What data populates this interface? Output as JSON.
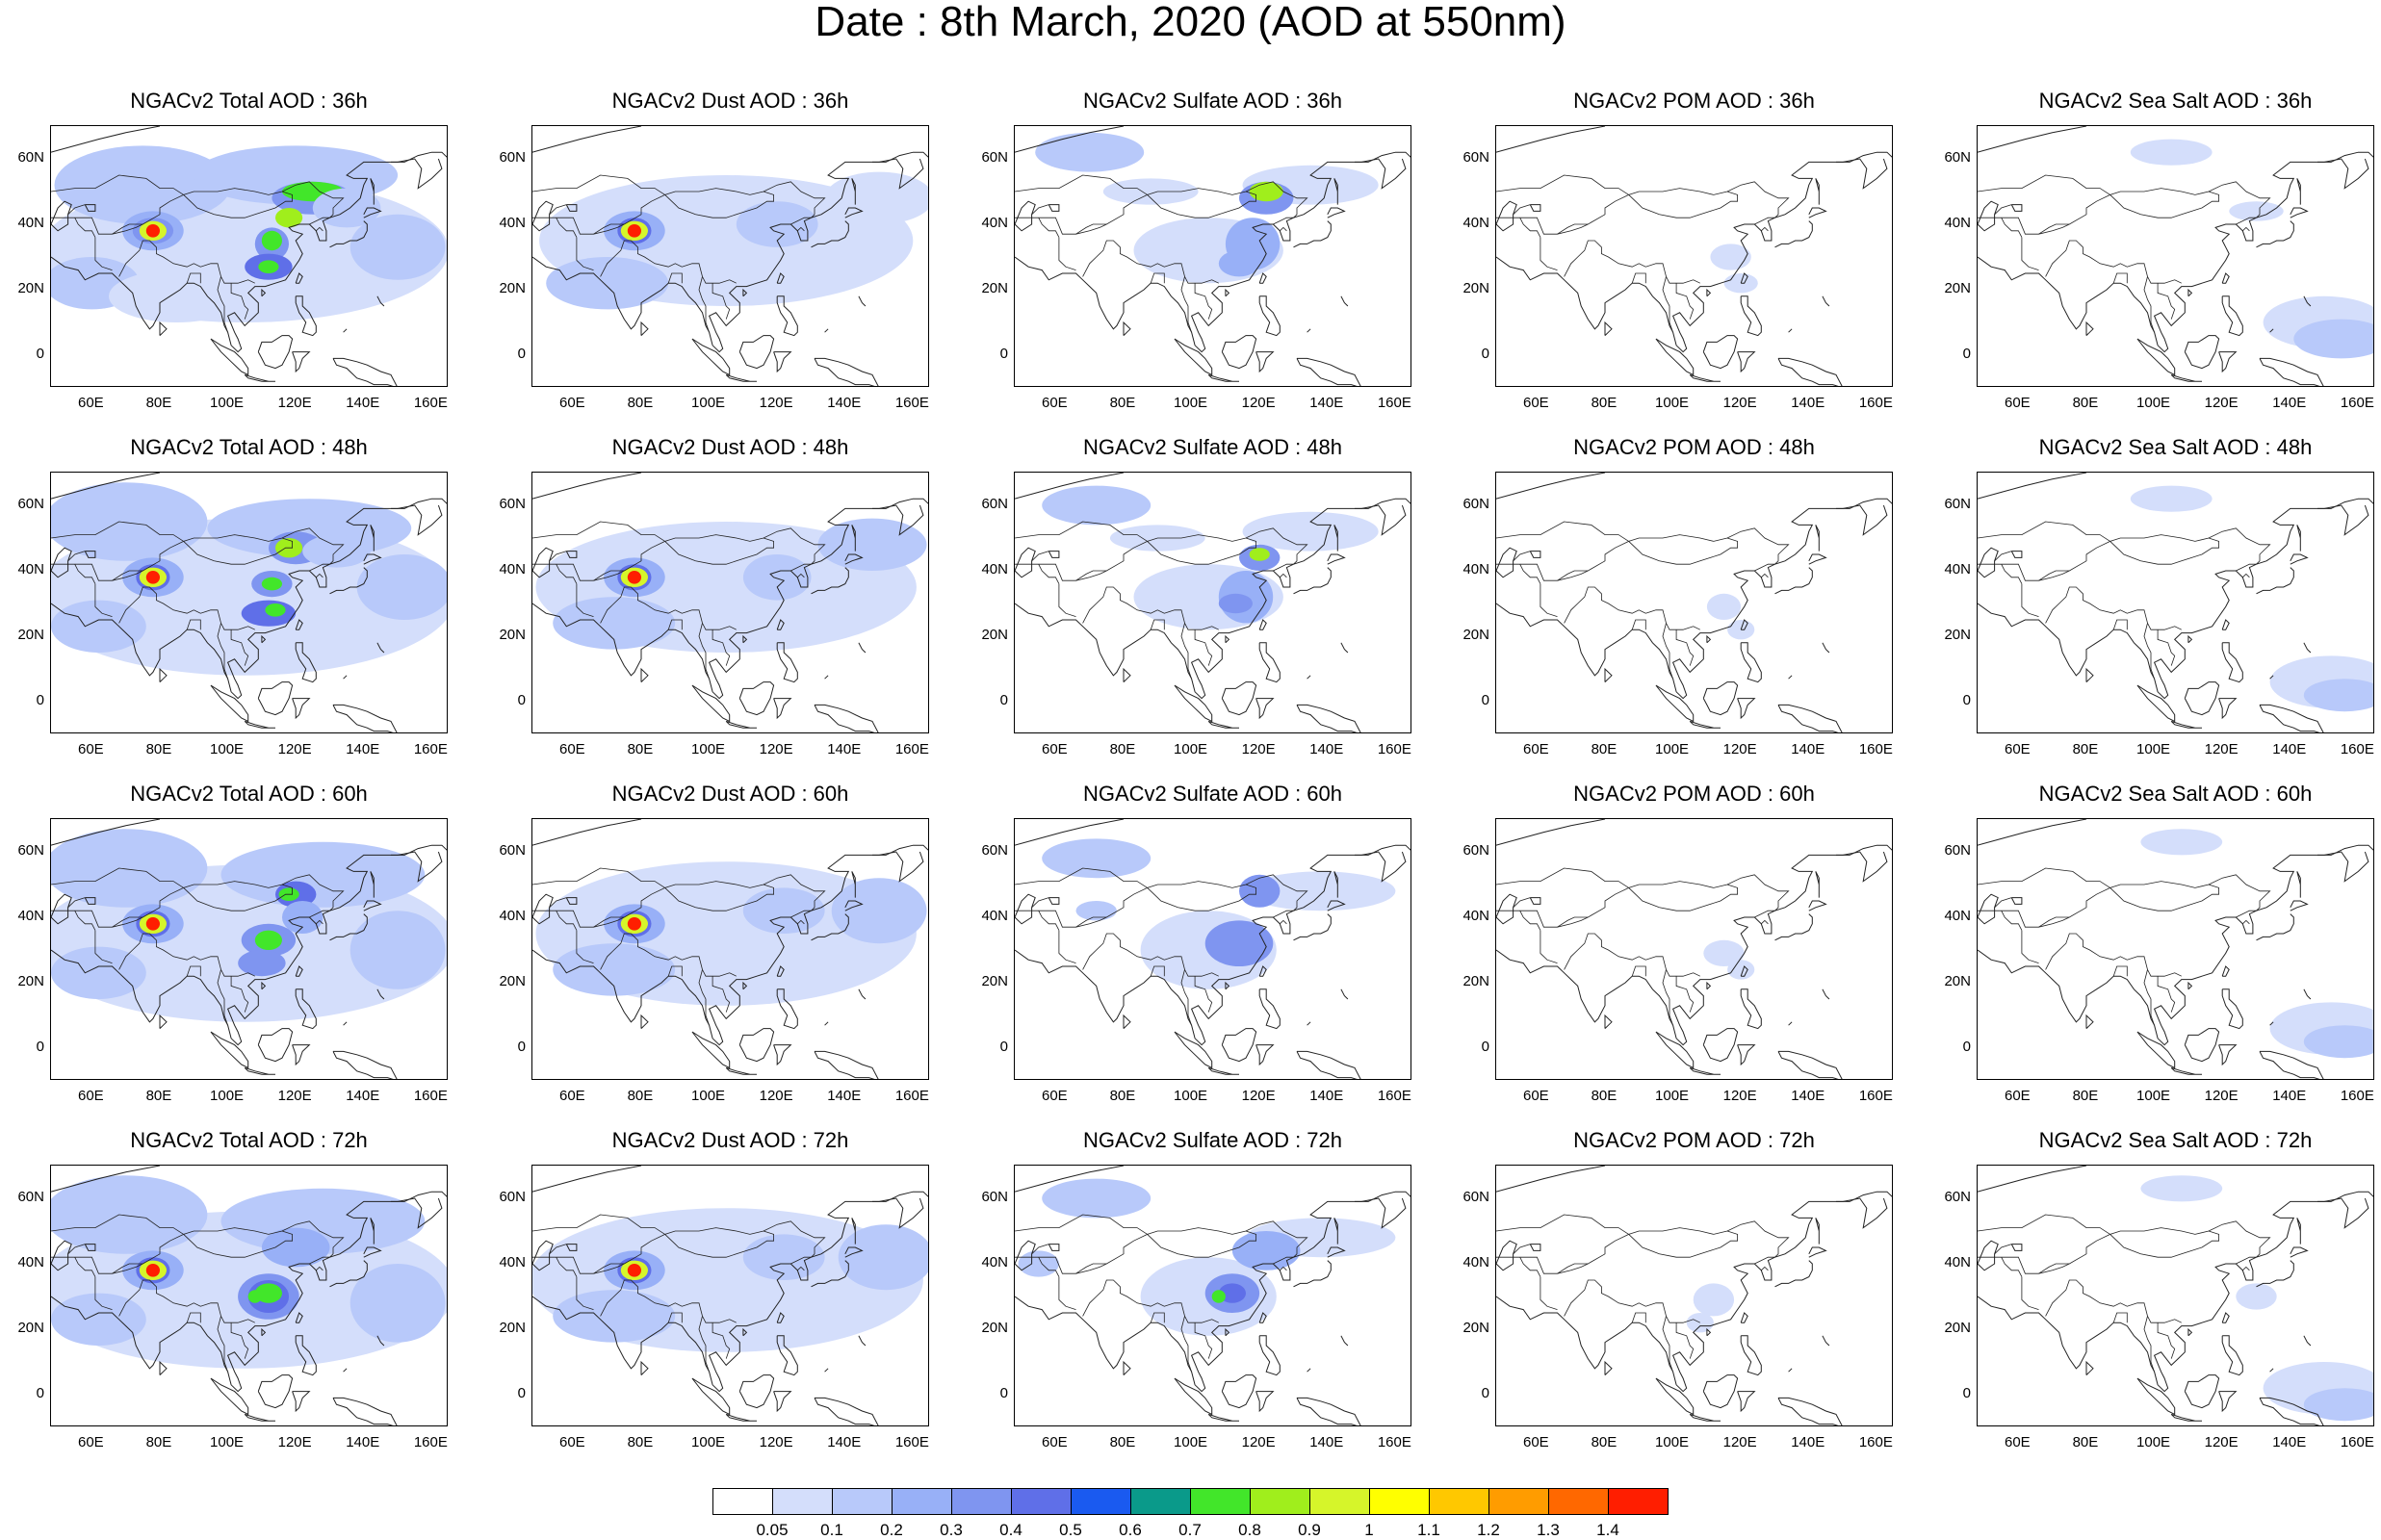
{
  "figure": {
    "title": "Date : 8th March, 2020 (AOD at 550nm)"
  },
  "map_axes": {
    "lat_ticks": [
      "60N",
      "40N",
      "20N",
      "0"
    ],
    "lon_ticks": [
      "60E",
      "80E",
      "100E",
      "120E",
      "140E",
      "160E"
    ],
    "lat_range": [
      -10,
      70
    ],
    "lon_range": [
      48,
      165
    ]
  },
  "panels": [
    {
      "row": 0,
      "col": 0,
      "title": "NGACv2 Total AOD : 36h",
      "species": "total",
      "lead_hours": 36
    },
    {
      "row": 0,
      "col": 1,
      "title": "NGACv2 Dust AOD : 36h",
      "species": "dust",
      "lead_hours": 36
    },
    {
      "row": 0,
      "col": 2,
      "title": "NGACv2 Sulfate AOD : 36h",
      "species": "sulfate",
      "lead_hours": 36
    },
    {
      "row": 0,
      "col": 3,
      "title": "NGACv2 POM AOD : 36h",
      "species": "pom",
      "lead_hours": 36
    },
    {
      "row": 0,
      "col": 4,
      "title": "NGACv2 Sea Salt AOD : 36h",
      "species": "seasalt",
      "lead_hours": 36
    },
    {
      "row": 1,
      "col": 0,
      "title": "NGACv2 Total AOD : 48h",
      "species": "total",
      "lead_hours": 48
    },
    {
      "row": 1,
      "col": 1,
      "title": "NGACv2 Dust AOD : 48h",
      "species": "dust",
      "lead_hours": 48
    },
    {
      "row": 1,
      "col": 2,
      "title": "NGACv2 Sulfate AOD : 48h",
      "species": "sulfate",
      "lead_hours": 48
    },
    {
      "row": 1,
      "col": 3,
      "title": "NGACv2 POM AOD : 48h",
      "species": "pom",
      "lead_hours": 48
    },
    {
      "row": 1,
      "col": 4,
      "title": "NGACv2 Sea Salt AOD : 48h",
      "species": "seasalt",
      "lead_hours": 48
    },
    {
      "row": 2,
      "col": 0,
      "title": "NGACv2 Total AOD : 60h",
      "species": "total",
      "lead_hours": 60
    },
    {
      "row": 2,
      "col": 1,
      "title": "NGACv2 Dust AOD : 60h",
      "species": "dust",
      "lead_hours": 60
    },
    {
      "row": 2,
      "col": 2,
      "title": "NGACv2 Sulfate AOD : 60h",
      "species": "sulfate",
      "lead_hours": 60
    },
    {
      "row": 2,
      "col": 3,
      "title": "NGACv2 POM AOD : 60h",
      "species": "pom",
      "lead_hours": 60
    },
    {
      "row": 2,
      "col": 4,
      "title": "NGACv2 Sea Salt AOD : 60h",
      "species": "seasalt",
      "lead_hours": 60
    },
    {
      "row": 3,
      "col": 0,
      "title": "NGACv2 Total AOD : 72h",
      "species": "total",
      "lead_hours": 72
    },
    {
      "row": 3,
      "col": 1,
      "title": "NGACv2 Dust AOD : 72h",
      "species": "dust",
      "lead_hours": 72
    },
    {
      "row": 3,
      "col": 2,
      "title": "NGACv2 Sulfate AOD : 72h",
      "species": "sulfate",
      "lead_hours": 72
    },
    {
      "row": 3,
      "col": 3,
      "title": "NGACv2 POM AOD : 72h",
      "species": "pom",
      "lead_hours": 72
    },
    {
      "row": 3,
      "col": 4,
      "title": "NGACv2 Sea Salt  AOD : 72h",
      "species": "seasalt",
      "lead_hours": 72
    }
  ],
  "colorbar": {
    "labels": [
      "0.05",
      "0.1",
      "0.2",
      "0.3",
      "0.4",
      "0.5",
      "0.6",
      "0.7",
      "0.8",
      "0.9",
      "1",
      "1.1",
      "1.2",
      "1.3",
      "1.4"
    ],
    "colors": [
      "#ffffff",
      "#d4defb",
      "#b8c9fa",
      "#98b0f7",
      "#7f95f0",
      "#5f6fe8",
      "#1a5af0",
      "#0a9a8a",
      "#42e62a",
      "#a0ee1c",
      "#d6f52a",
      "#ffff00",
      "#ffc800",
      "#ff9c00",
      "#ff6800",
      "#ff1e00"
    ]
  }
}
